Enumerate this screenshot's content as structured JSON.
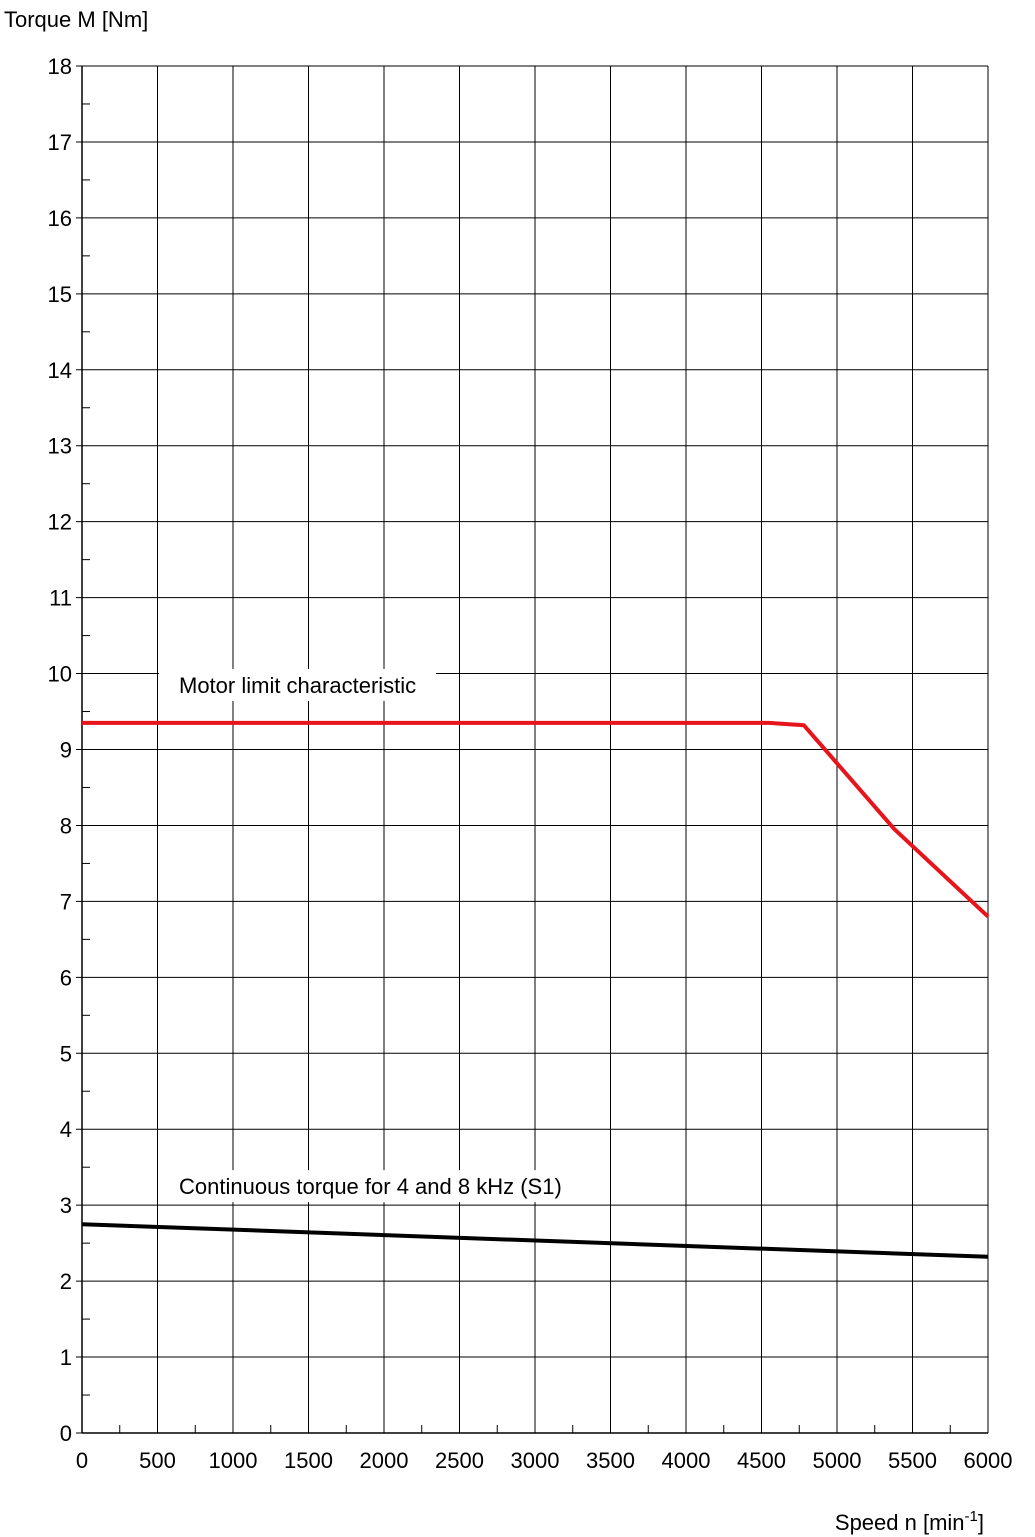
{
  "chart_data": {
    "type": "line",
    "ylabel": "Torque M [Nm]",
    "xlabel": {
      "base": "Speed n [min",
      "sup": "-1",
      "tail": "]"
    },
    "xlim": [
      0,
      6000
    ],
    "ylim": [
      0,
      18
    ],
    "x_ticks": [
      0,
      500,
      1000,
      1500,
      2000,
      2500,
      3000,
      3500,
      4000,
      4500,
      5000,
      5500,
      6000
    ],
    "y_ticks": [
      0,
      1,
      2,
      3,
      4,
      5,
      6,
      7,
      8,
      9,
      10,
      11,
      12,
      13,
      14,
      15,
      16,
      17,
      18
    ],
    "grid": true,
    "series": [
      {
        "name": "Motor limit characteristic",
        "color": "#e8141b",
        "points": [
          [
            0,
            9.35
          ],
          [
            4550,
            9.35
          ],
          [
            4780,
            9.32
          ],
          [
            5380,
            7.95
          ],
          [
            6000,
            6.8
          ]
        ]
      },
      {
        "name": "Continuous torque for 4 and 8 kHz (S1)",
        "color": "#000000",
        "points": [
          [
            0,
            2.75
          ],
          [
            6000,
            2.32
          ]
        ]
      }
    ],
    "annotations": [
      {
        "text": "Motor limit characteristic",
        "series": 0
      },
      {
        "text": "Continuous torque for 4 and 8 kHz (S1)",
        "series": 1
      }
    ]
  }
}
